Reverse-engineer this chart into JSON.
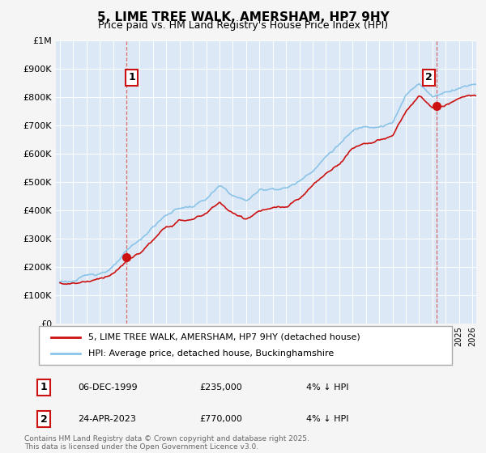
{
  "title": "5, LIME TREE WALK, AMERSHAM, HP7 9HY",
  "subtitle": "Price paid vs. HM Land Registry's House Price Index (HPI)",
  "legend_line1": "5, LIME TREE WALK, AMERSHAM, HP7 9HY (detached house)",
  "legend_line2": "HPI: Average price, detached house, Buckinghamshire",
  "sale1_label": "1",
  "sale1_date": "06-DEC-1999",
  "sale1_price": "£235,000",
  "sale1_note": "4% ↓ HPI",
  "sale1_year": 2000.0,
  "sale1_value": 235000,
  "sale2_label": "2",
  "sale2_date": "24-APR-2023",
  "sale2_price": "£770,000",
  "sale2_note": "4% ↓ HPI",
  "sale2_year": 2023.31,
  "sale2_value": 770000,
  "hpi_line_color": "#8ac4e8",
  "sale_line_color": "#cc1111",
  "background_color": "#f5f5f5",
  "plot_bg_color": "#dce8f5",
  "footer_text": "Contains HM Land Registry data © Crown copyright and database right 2025.\nThis data is licensed under the Open Government Licence v3.0.",
  "ylim": [
    0,
    1000000
  ],
  "xlim_start": 1994.7,
  "xlim_end": 2026.3,
  "hpi_anchors_years": [
    1995,
    1996,
    1997,
    1998,
    1999,
    2000,
    2001,
    2002,
    2003,
    2004,
    2005,
    2006,
    2007,
    2008,
    2009,
    2010,
    2011,
    2012,
    2013,
    2014,
    2015,
    2016,
    2017,
    2018,
    2019,
    2020,
    2021,
    2022,
    2023,
    2024,
    2025,
    2026
  ],
  "hpi_anchors_vals": [
    148000,
    152000,
    163000,
    178000,
    200000,
    245000,
    280000,
    330000,
    370000,
    395000,
    400000,
    425000,
    465000,
    430000,
    410000,
    445000,
    455000,
    458000,
    480000,
    525000,
    575000,
    620000,
    660000,
    680000,
    690000,
    700000,
    790000,
    840000,
    790000,
    810000,
    830000,
    845000
  ],
  "prop_anchors_years": [
    1995,
    1996,
    1997,
    1998,
    1999,
    2000,
    2001,
    2002,
    2003,
    2004,
    2005,
    2006,
    2007,
    2008,
    2009,
    2010,
    2011,
    2012,
    2013,
    2014,
    2015,
    2016,
    2017,
    2018,
    2019,
    2020,
    2021,
    2022,
    2023,
    2024,
    2025,
    2026
  ],
  "prop_anchors_vals": [
    145000,
    148000,
    158000,
    170000,
    195000,
    235000,
    265000,
    310000,
    350000,
    375000,
    380000,
    400000,
    445000,
    400000,
    385000,
    415000,
    420000,
    420000,
    445000,
    490000,
    530000,
    570000,
    630000,
    650000,
    660000,
    670000,
    760000,
    810000,
    770000,
    770000,
    800000,
    805000
  ]
}
